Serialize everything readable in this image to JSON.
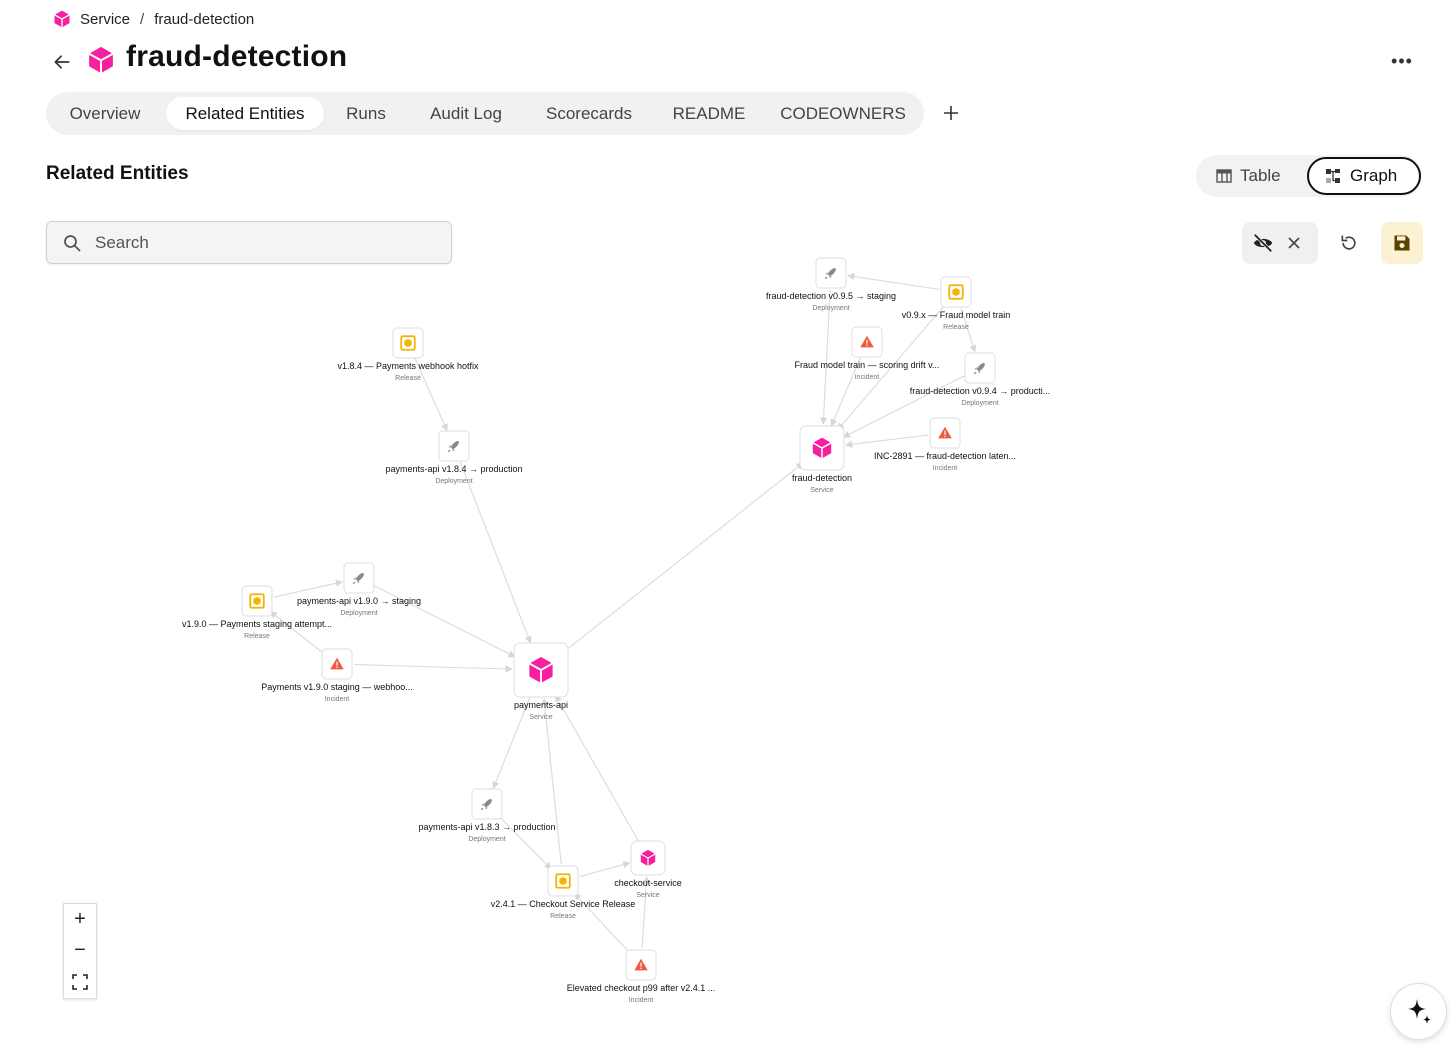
{
  "breadcrumb": {
    "items": [
      "Service",
      "fraud-detection"
    ],
    "separator": "/"
  },
  "header": {
    "title": "fraud-detection",
    "icon": "cube-icon",
    "more_label": "•••"
  },
  "tabs": [
    {
      "label": "Overview",
      "active": false
    },
    {
      "label": "Related Entities",
      "active": true
    },
    {
      "label": "Runs",
      "active": false
    },
    {
      "label": "Audit Log",
      "active": false
    },
    {
      "label": "Scorecards",
      "active": false
    },
    {
      "label": "README",
      "active": false
    },
    {
      "label": "CODEOWNERS",
      "active": false
    }
  ],
  "section": {
    "title": "Related Entities"
  },
  "view_toggle": {
    "table_label": "Table",
    "graph_label": "Graph",
    "selected": "Graph"
  },
  "search": {
    "placeholder": "Search",
    "value": ""
  },
  "colors": {
    "service": "#f51fa0",
    "release": "#f5b400",
    "incident": "#f05a3c",
    "deployment": "#8a8a8a",
    "edge": "#dddddd",
    "save_bg": "#fdf1d4"
  },
  "graph": {
    "nodes": [
      {
        "id": "fd",
        "kind": "service",
        "label": "fraud-detection",
        "type": "Service"
      },
      {
        "id": "fd_dep_stg",
        "kind": "deployment",
        "label": "fraud-detection v0.9.5 → staging",
        "type": "Deployment"
      },
      {
        "id": "fd_rel",
        "kind": "release",
        "label": "v0.9.x — Fraud model train",
        "type": "Release"
      },
      {
        "id": "fd_inc1",
        "kind": "incident",
        "label": "Fraud model train — scoring drift v...",
        "type": "Incident"
      },
      {
        "id": "fd_dep_prod",
        "kind": "deployment",
        "label": "fraud-detection v0.9.4 → producti...",
        "type": "Deployment"
      },
      {
        "id": "fd_inc2",
        "kind": "incident",
        "label": "INC-2891 — fraud-detection laten...",
        "type": "Incident"
      },
      {
        "id": "pa_rel184",
        "kind": "release",
        "label": "v1.8.4 — Payments webhook hotfix",
        "type": "Release"
      },
      {
        "id": "pa_dep184",
        "kind": "deployment",
        "label": "payments-api v1.8.4 → production",
        "type": "Deployment"
      },
      {
        "id": "pa_dep190",
        "kind": "deployment",
        "label": "payments-api v1.9.0 → staging",
        "type": "Deployment"
      },
      {
        "id": "pa_rel190",
        "kind": "release",
        "label": "v1.9.0 — Payments staging attempt...",
        "type": "Release"
      },
      {
        "id": "pa_inc190",
        "kind": "incident",
        "label": "Payments v1.9.0 staging — webhoo...",
        "type": "Incident"
      },
      {
        "id": "pa",
        "kind": "service",
        "label": "payments-api",
        "type": "Service"
      },
      {
        "id": "pa_dep183",
        "kind": "deployment",
        "label": "payments-api v1.8.3 → production",
        "type": "Deployment"
      },
      {
        "id": "co",
        "kind": "service",
        "label": "checkout-service",
        "type": "Service"
      },
      {
        "id": "co_rel",
        "kind": "release",
        "label": "v2.4.1 — Checkout Service Release",
        "type": "Release"
      },
      {
        "id": "co_inc",
        "kind": "incident",
        "label": "Elevated checkout p99 after v2.4.1 ...",
        "type": "Incident"
      }
    ],
    "edges": [
      [
        "fd_rel",
        "fd_dep_stg"
      ],
      [
        "fd_dep_stg",
        "fd"
      ],
      [
        "fd_rel",
        "fd_dep_prod"
      ],
      [
        "fd_rel",
        "fd"
      ],
      [
        "fd_inc1",
        "fd"
      ],
      [
        "fd_dep_prod",
        "fd"
      ],
      [
        "fd_inc2",
        "fd"
      ],
      [
        "pa",
        "fd"
      ],
      [
        "pa_rel184",
        "pa_dep184"
      ],
      [
        "pa_dep184",
        "pa"
      ],
      [
        "pa_rel190",
        "pa_dep190"
      ],
      [
        "pa_dep190",
        "pa"
      ],
      [
        "pa_inc190",
        "pa_rel190"
      ],
      [
        "pa_inc190",
        "pa"
      ],
      [
        "pa",
        "pa_dep183"
      ],
      [
        "pa_dep183",
        "co_rel"
      ],
      [
        "co_rel",
        "pa"
      ],
      [
        "co",
        "pa"
      ],
      [
        "co_rel",
        "co"
      ],
      [
        "co_inc",
        "co_rel"
      ],
      [
        "co_inc",
        "co"
      ]
    ]
  },
  "zoom": {
    "in_label": "+",
    "out_label": "−"
  }
}
